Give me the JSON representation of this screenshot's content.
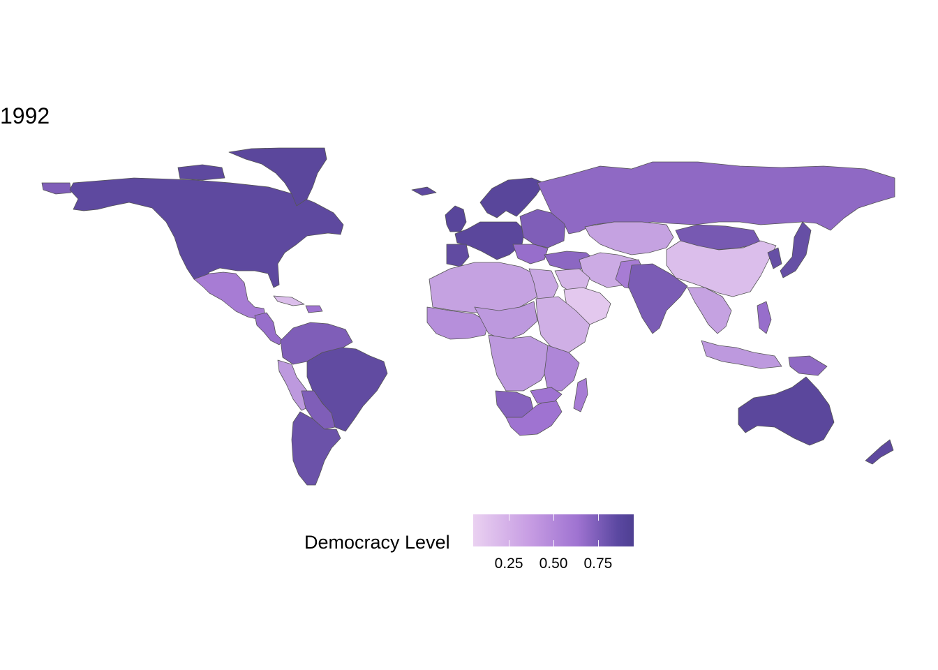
{
  "title": "1992",
  "legend": {
    "title": "Democracy Level",
    "ticks": [
      "0.25",
      "0.50",
      "0.75"
    ],
    "tick_values": [
      0.25,
      0.5,
      0.75
    ],
    "min": 0.05,
    "max": 0.95,
    "colors": {
      "low": "#ead1f1",
      "mid": "#9f73d1",
      "high": "#4e3f92",
      "border": "#555555"
    }
  },
  "regions": [
    {
      "name": "north-america",
      "level": 0.9
    },
    {
      "name": "greenland",
      "level": 0.92
    },
    {
      "name": "alaska-west",
      "level": 0.7
    },
    {
      "name": "mexico",
      "level": 0.45
    },
    {
      "name": "central-america",
      "level": 0.55
    },
    {
      "name": "cuba",
      "level": 0.1
    },
    {
      "name": "caribbean",
      "level": 0.5
    },
    {
      "name": "venezuela-colombia",
      "level": 0.7
    },
    {
      "name": "peru",
      "level": 0.3
    },
    {
      "name": "brazil",
      "level": 0.88
    },
    {
      "name": "bolivia-paraguay",
      "level": 0.7
    },
    {
      "name": "argentina-chile",
      "level": 0.82
    },
    {
      "name": "uk-ireland",
      "level": 0.93
    },
    {
      "name": "iceland",
      "level": 0.9
    },
    {
      "name": "scandinavia",
      "level": 0.93
    },
    {
      "name": "western-europe",
      "level": 0.92
    },
    {
      "name": "iberia",
      "level": 0.88
    },
    {
      "name": "eastern-europe",
      "level": 0.7
    },
    {
      "name": "balkans",
      "level": 0.55
    },
    {
      "name": "russia",
      "level": 0.6
    },
    {
      "name": "turkey",
      "level": 0.62
    },
    {
      "name": "central-asia",
      "level": 0.25
    },
    {
      "name": "mongolia",
      "level": 0.75
    },
    {
      "name": "china",
      "level": 0.1
    },
    {
      "name": "korea-japan",
      "level": 0.85
    },
    {
      "name": "middle-east",
      "level": 0.15
    },
    {
      "name": "arabia",
      "level": 0.05
    },
    {
      "name": "iran-afghanistan",
      "level": 0.2
    },
    {
      "name": "pakistan",
      "level": 0.45
    },
    {
      "name": "india",
      "level": 0.72
    },
    {
      "name": "southeast-asia",
      "level": 0.25
    },
    {
      "name": "philippines",
      "level": 0.55
    },
    {
      "name": "indonesia",
      "level": 0.3
    },
    {
      "name": "png",
      "level": 0.6
    },
    {
      "name": "north-africa",
      "level": 0.25
    },
    {
      "name": "egypt",
      "level": 0.22
    },
    {
      "name": "west-africa",
      "level": 0.35
    },
    {
      "name": "sahel",
      "level": 0.3
    },
    {
      "name": "sudan-ethiopia",
      "level": 0.18
    },
    {
      "name": "central-africa",
      "level": 0.3
    },
    {
      "name": "east-africa",
      "level": 0.4
    },
    {
      "name": "southern-africa",
      "level": 0.5
    },
    {
      "name": "botswana-namibia",
      "level": 0.65
    },
    {
      "name": "madagascar",
      "level": 0.45
    },
    {
      "name": "australia",
      "level": 0.92
    },
    {
      "name": "new-zealand",
      "level": 0.9
    }
  ]
}
